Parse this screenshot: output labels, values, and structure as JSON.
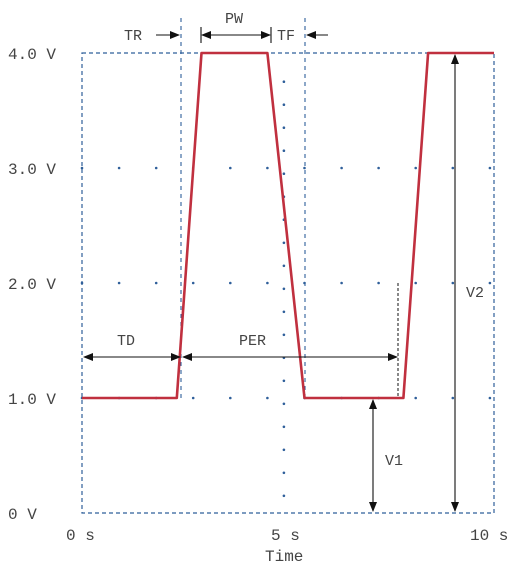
{
  "chart_data": {
    "type": "line",
    "xlabel": "Time",
    "xticks": [
      "0 s",
      "5 s",
      "10 s"
    ],
    "yticks": [
      "0 V",
      "1.0 V",
      "2.0 V",
      "3.0 V",
      "4.0 V"
    ],
    "xlim": [
      0,
      10
    ],
    "ylim": [
      0,
      4
    ],
    "series": [
      {
        "x": [
          0,
          2.3,
          2.9,
          4.5,
          5.4,
          7.8,
          8.4,
          10
        ],
        "y": [
          1.0,
          1.0,
          4.0,
          4.0,
          1.0,
          1.0,
          4.0,
          4.0
        ]
      }
    ],
    "grid": "dotted",
    "colors": {
      "waveform": "#c0303f",
      "frame": "#2f5f9a"
    }
  },
  "annotations": {
    "td": "TD",
    "tr": "TR",
    "pw": "PW",
    "tf": "TF",
    "per": "PER",
    "v1": "V1",
    "v2": "V2"
  }
}
